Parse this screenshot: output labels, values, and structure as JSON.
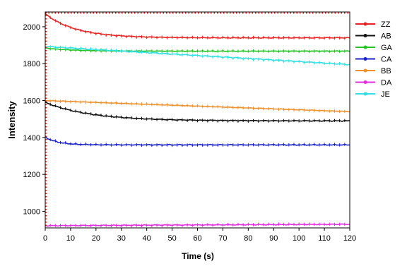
{
  "chart_data": {
    "type": "line",
    "title": "",
    "xlabel": "Time (s)",
    "ylabel": "Intensity",
    "xlim": [
      0,
      120
    ],
    "ylim": [
      910,
      2080
    ],
    "x_ticks": [
      0,
      10,
      20,
      30,
      40,
      50,
      60,
      70,
      80,
      90,
      100,
      110,
      120
    ],
    "y_ticks": [
      1000,
      1200,
      1400,
      1600,
      1800,
      2000
    ],
    "grid": false,
    "legend_position": "right",
    "series": [
      {
        "name": "ZZ",
        "color": "#e8231f",
        "start": 2070,
        "end": 1940,
        "tau": 12,
        "noise": 3
      },
      {
        "name": "AB",
        "color": "#111111",
        "start": 1590,
        "end": 1490,
        "tau": 18,
        "noise": 3
      },
      {
        "name": "GA",
        "color": "#22c422",
        "start": 1885,
        "end": 1868,
        "tau": 10,
        "noise": 2
      },
      {
        "name": "CA",
        "color": "#1b22c9",
        "start": 1402,
        "end": 1360,
        "tau": 5,
        "noise": 3
      },
      {
        "name": "BB",
        "color": "#f0902a",
        "start": 1600,
        "end": 1540,
        "tau": 0,
        "noise": 2
      },
      {
        "name": "DA",
        "color": "#e22ce2",
        "start": 922,
        "end": 930,
        "tau": 0,
        "noise": 3
      },
      {
        "name": "JE",
        "color": "#2fe0e6",
        "start": 1893,
        "end": 1795,
        "tau": 0,
        "noise": 4
      }
    ]
  }
}
